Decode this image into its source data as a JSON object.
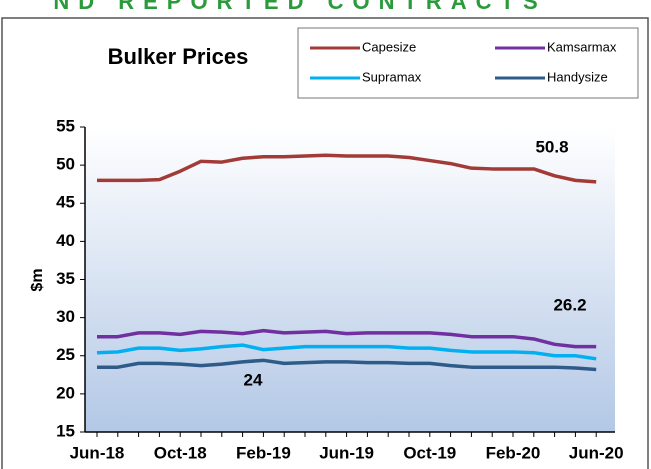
{
  "header": {
    "banner": "ND REPORTED CONTRACTS"
  },
  "chart_data": {
    "type": "line",
    "title": "Bulker Prices",
    "y_label": "$m",
    "categories": [
      "Jun-18",
      null,
      null,
      null,
      "Oct-18",
      null,
      null,
      null,
      "Feb-19",
      null,
      null,
      null,
      "Jun-19",
      null,
      null,
      null,
      "Oct-19",
      null,
      null,
      null,
      "Feb-20",
      null,
      null,
      null,
      "Jun-20"
    ],
    "series": [
      {
        "name": "Capesize",
        "color": "#a23b37",
        "values": [
          48,
          48,
          48,
          48.1,
          49.2,
          50.5,
          50.4,
          50.9,
          51.1,
          51.1,
          51.2,
          51.3,
          51.2,
          51.2,
          51.2,
          51.0,
          50.6,
          50.2,
          49.6,
          49.5,
          49.5,
          49.5,
          48.6,
          48.0,
          47.8
        ]
      },
      {
        "name": "Kamsarmax",
        "color": "#7030a0",
        "values": [
          27.5,
          27.5,
          28,
          28,
          27.8,
          28.2,
          28.1,
          27.9,
          28.3,
          28,
          28.1,
          28.2,
          27.9,
          28,
          28,
          28,
          28,
          27.8,
          27.5,
          27.5,
          27.5,
          27.2,
          26.5,
          26.2,
          26.2
        ]
      },
      {
        "name": "Supramax",
        "color": "#00b0f0",
        "values": [
          25.4,
          25.5,
          26,
          26,
          25.7,
          25.9,
          26.2,
          26.4,
          25.8,
          26,
          26.2,
          26.2,
          26.2,
          26.2,
          26.2,
          26,
          26,
          25.7,
          25.5,
          25.5,
          25.5,
          25.4,
          25.0,
          25.0,
          24.6
        ]
      },
      {
        "name": "Handysize",
        "color": "#2f5b88",
        "values": [
          23.5,
          23.5,
          24,
          24,
          23.9,
          23.7,
          23.9,
          24.2,
          24.4,
          24,
          24.1,
          24.2,
          24.2,
          24.1,
          24.1,
          24,
          24,
          23.7,
          23.5,
          23.5,
          23.5,
          23.5,
          23.5,
          23.4,
          23.2
        ]
      }
    ],
    "ylim": [
      15,
      55
    ],
    "yticks": [
      15,
      20,
      25,
      30,
      35,
      40,
      45,
      50,
      55
    ],
    "grid": false,
    "annotations": [
      "50.8",
      "26.2",
      "24"
    ]
  }
}
